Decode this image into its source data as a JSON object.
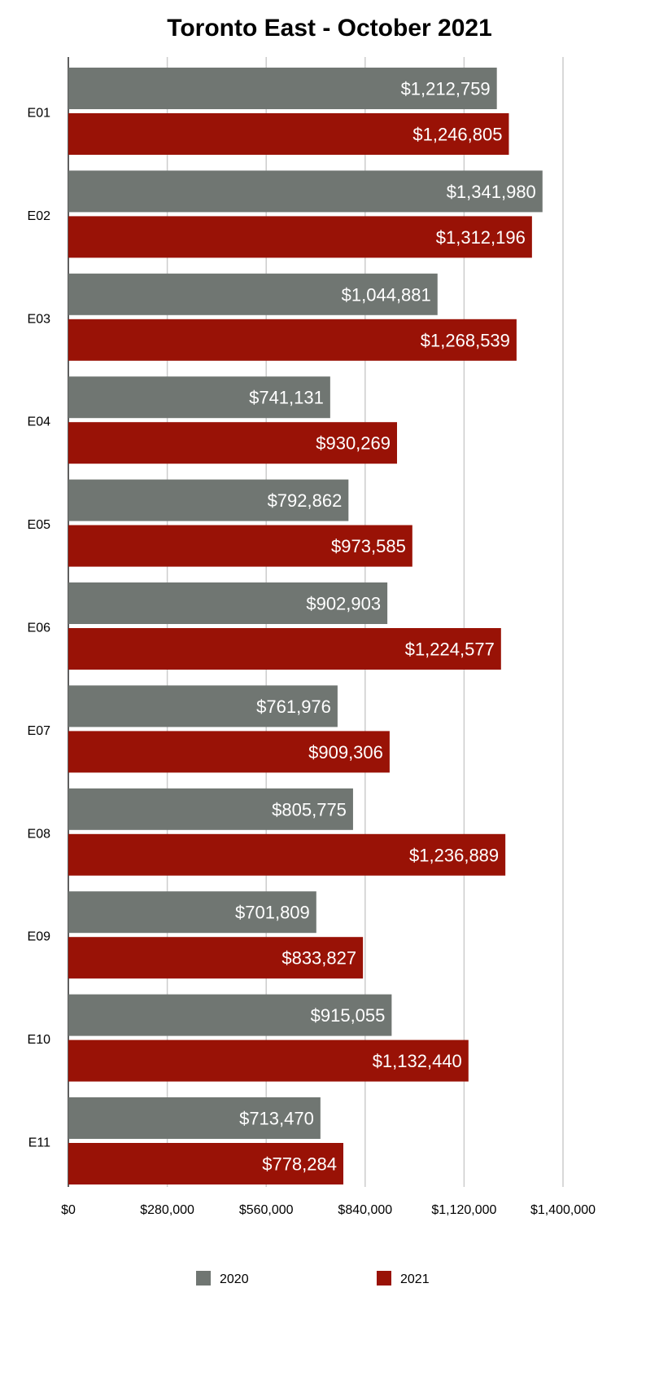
{
  "chart_data": {
    "type": "bar",
    "orientation": "horizontal",
    "title": "Toronto East - October 2021",
    "xlabel": "",
    "ylabel": "",
    "categories": [
      "E01",
      "E02",
      "E03",
      "E04",
      "E05",
      "E06",
      "E07",
      "E08",
      "E09",
      "E10",
      "E11"
    ],
    "series": [
      {
        "name": "2020",
        "color": "#707672",
        "values": [
          1212759,
          1341980,
          1044881,
          741131,
          792862,
          902903,
          761976,
          805775,
          701809,
          915055,
          713470
        ],
        "labels": [
          "$1,212,759",
          "$1,341,980",
          "$1,044,881",
          "$741,131",
          "$792,862",
          "$902,903",
          "$761,976",
          "$805,775",
          "$701,809",
          "$915,055",
          "$713,470"
        ]
      },
      {
        "name": "2021",
        "color": "#991206",
        "values": [
          1246805,
          1312196,
          1268539,
          930269,
          973585,
          1224577,
          909306,
          1236889,
          833827,
          1132440,
          778284
        ],
        "labels": [
          "$1,246,805",
          "$1,312,196",
          "$1,268,539",
          "$930,269",
          "$973,585",
          "$1,224,577",
          "$909,306",
          "$1,236,889",
          "$833,827",
          "$1,132,440",
          "$778,284"
        ]
      }
    ],
    "xlim": [
      0,
      1400000
    ],
    "xticks": [
      0,
      280000,
      560000,
      840000,
      1120000,
      1400000
    ],
    "xtick_labels": [
      "$0",
      "$280,000",
      "$560,000",
      "$840,000",
      "$1,120,000",
      "$1,400,000"
    ],
    "grid": true,
    "legend_position": "bottom"
  }
}
